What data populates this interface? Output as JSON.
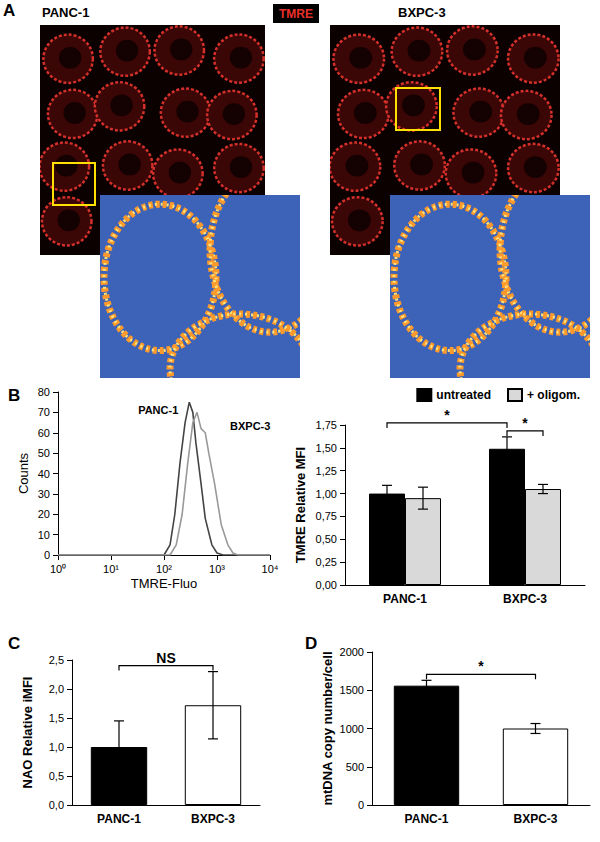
{
  "panel_a": {
    "title": "A",
    "stain": "TMRE",
    "labels": [
      "PANC-1",
      "BXPC-3"
    ]
  },
  "chart_data": [
    {
      "type": "line",
      "title": "B",
      "xlabel": "TMRE-Fluo",
      "ylabel": "Counts",
      "log": "x",
      "grid": false,
      "xlim": [
        1,
        10000
      ],
      "xticks": [
        {
          "value": 1,
          "label": "10⁰"
        },
        {
          "value": 10,
          "label": "10¹"
        },
        {
          "value": 100,
          "label": "10²"
        },
        {
          "value": 1000,
          "label": "10³"
        },
        {
          "value": 10000,
          "label": "10⁴"
        }
      ],
      "ylim": [
        0,
        80
      ],
      "yticks": [
        0,
        10,
        20,
        30,
        40,
        50,
        60,
        70,
        80
      ],
      "series": [
        {
          "name": "PANC-1",
          "color": "#444444",
          "x": [
            1,
            100,
            130,
            160,
            200,
            250,
            300,
            350,
            400,
            500,
            600,
            800,
            1000,
            1300,
            10000
          ],
          "values": [
            0,
            0,
            5,
            20,
            45,
            65,
            75,
            70,
            55,
            35,
            18,
            5,
            1,
            0,
            0
          ]
        },
        {
          "name": "BXPC-3",
          "color": "#999999",
          "x": [
            1,
            130,
            170,
            220,
            280,
            350,
            420,
            500,
            600,
            700,
            900,
            1200,
            1600,
            2000,
            2500,
            10000
          ],
          "values": [
            0,
            0,
            5,
            20,
            45,
            65,
            70,
            62,
            60,
            50,
            35,
            15,
            5,
            1,
            0,
            0
          ]
        }
      ]
    },
    {
      "type": "bar",
      "ylabel": "TMRE Relative MFI",
      "grid": false,
      "legend": "upper right",
      "categories": [
        "PANC-1",
        "BXPC-3"
      ],
      "ylim": [
        0,
        1.75
      ],
      "yticks": [
        {
          "value": 0,
          "label": "0,00"
        },
        {
          "value": 0.25,
          "label": "0,25"
        },
        {
          "value": 0.5,
          "label": "0,50"
        },
        {
          "value": 0.75,
          "label": "0,75"
        },
        {
          "value": 1,
          "label": "1,00"
        },
        {
          "value": 1.25,
          "label": "1,25"
        },
        {
          "value": 1.5,
          "label": "1,50"
        },
        {
          "value": 1.75,
          "label": "1,75"
        }
      ],
      "series": [
        {
          "name": "untreated",
          "color": "#000000",
          "values": [
            1.0,
            1.49
          ],
          "errors": [
            0.09,
            0.13
          ]
        },
        {
          "name": "+ oligom.",
          "color": "#d9d9d9",
          "values": [
            0.95,
            1.05
          ],
          "errors": [
            0.12,
            0.05
          ]
        }
      ],
      "significance": [
        {
          "from": [
            0,
            0
          ],
          "to": [
            1,
            0
          ],
          "label": "*"
        },
        {
          "from": [
            1,
            0
          ],
          "to": [
            1,
            1
          ],
          "label": "*"
        }
      ]
    },
    {
      "type": "bar",
      "title": "C",
      "ylabel": "NAO Relative iMFI",
      "grid": false,
      "categories": [
        "PANC-1",
        "BXPC-3"
      ],
      "values": [
        1.0,
        1.72
      ],
      "errors": [
        0.45,
        0.58
      ],
      "colors": [
        "#000000",
        "#ffffff"
      ],
      "ylim": [
        0,
        2.5
      ],
      "yticks": [
        {
          "value": 0,
          "label": "0,0"
        },
        {
          "value": 0.5,
          "label": "0,5"
        },
        {
          "value": 1,
          "label": "1,0"
        },
        {
          "value": 1.5,
          "label": "1,5"
        },
        {
          "value": 2,
          "label": "2,0"
        },
        {
          "value": 2.5,
          "label": "2,5"
        }
      ],
      "significance": [
        {
          "from": [
            0
          ],
          "to": [
            1
          ],
          "label": "NS"
        }
      ]
    },
    {
      "type": "bar",
      "title": "D",
      "ylabel": "mtDNA copy number/cell",
      "grid": false,
      "categories": [
        "PANC-1",
        "BXPC-3"
      ],
      "values": [
        1560,
        1000
      ],
      "errors": [
        70,
        65
      ],
      "colors": [
        "#000000",
        "#ffffff"
      ],
      "ylim": [
        0,
        2000
      ],
      "yticks": [
        0,
        500,
        1000,
        1500,
        2000
      ],
      "significance": [
        {
          "from": [
            0
          ],
          "to": [
            1
          ],
          "label": "*"
        }
      ]
    }
  ]
}
